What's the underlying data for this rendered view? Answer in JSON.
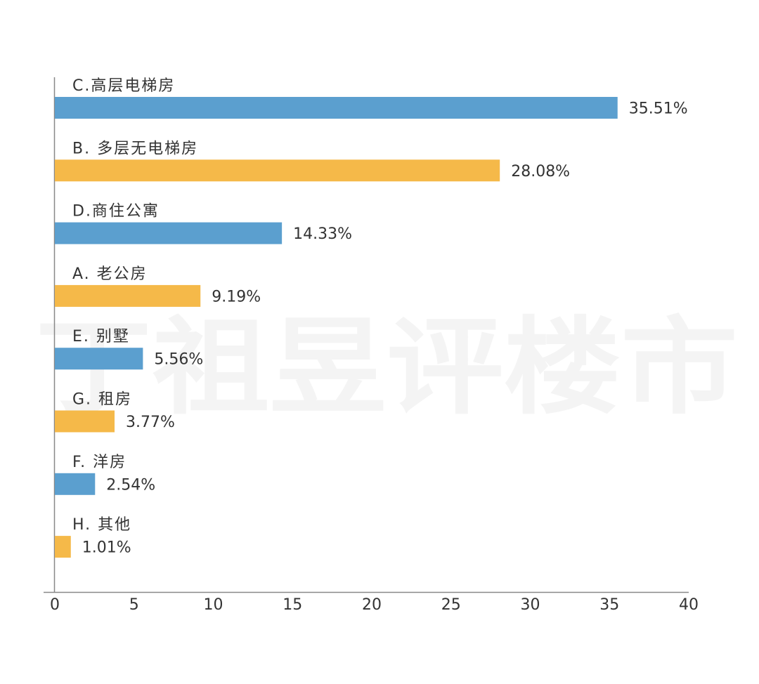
{
  "watermark": {
    "text": "丁祖昱评楼市"
  },
  "chart_data": {
    "type": "bar",
    "orientation": "horizontal",
    "categories": [
      "C.高层电梯房",
      "B. 多层无电梯房",
      "D.商住公寓",
      "A. 老公房",
      "E. 别墅",
      "G. 租房",
      "F. 洋房",
      "H. 其他"
    ],
    "values": [
      35.51,
      28.08,
      14.33,
      9.19,
      5.56,
      3.77,
      2.54,
      1.01
    ],
    "value_labels": [
      "35.51%",
      "28.08%",
      "14.33%",
      "9.19%",
      "5.56%",
      "3.77%",
      "2.54%",
      "1.01%"
    ],
    "colors": [
      "#5b9fcf",
      "#f5b949",
      "#5b9fcf",
      "#f5b949",
      "#5b9fcf",
      "#f5b949",
      "#5b9fcf",
      "#f5b949"
    ],
    "xlim": [
      0,
      40
    ],
    "xticks": [
      "0",
      "5",
      "10",
      "15",
      "20",
      "25",
      "30",
      "35",
      "40"
    ],
    "title": "",
    "xlabel": "",
    "ylabel": "",
    "grid": false,
    "legend": "none"
  }
}
